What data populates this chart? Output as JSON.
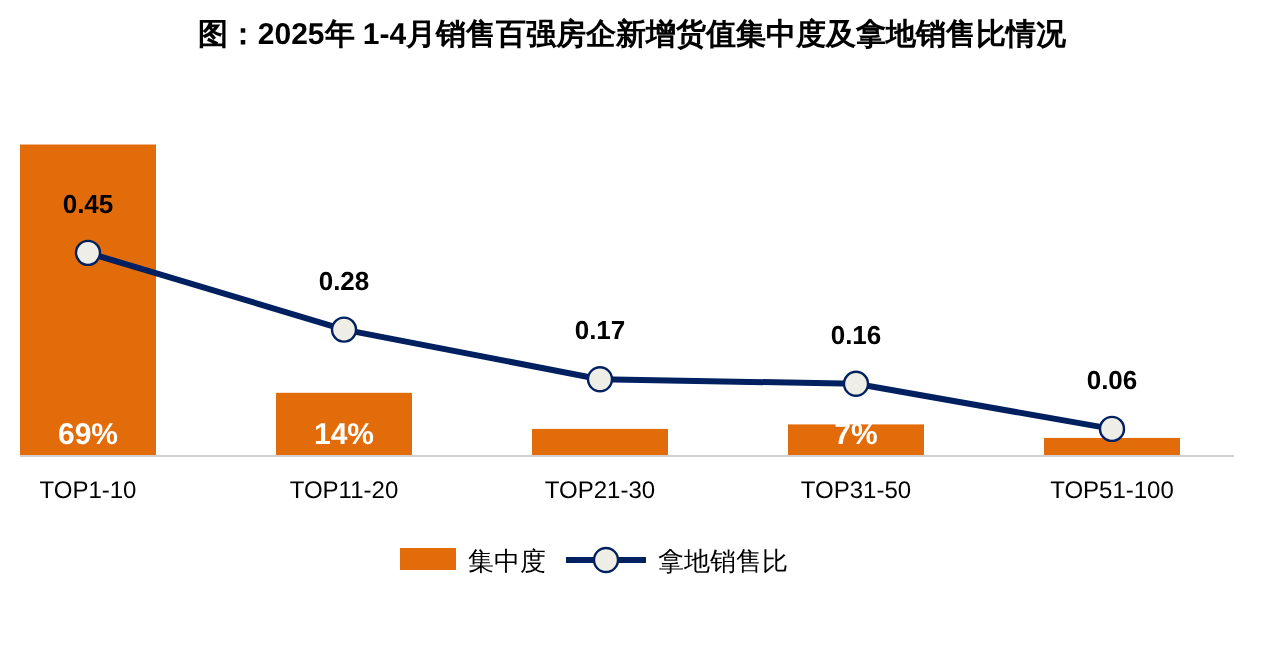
{
  "chart_data": {
    "type": "bar",
    "title": "图：2025年 1-4月销售百强房企新增货值集中度及拿地销售比情况",
    "categories": [
      "TOP1-10",
      "TOP11-20",
      "TOP21-30",
      "TOP31-50",
      "TOP51-100"
    ],
    "ylim": [
      0,
      70
    ],
    "y2lim": [
      0,
      0.7
    ],
    "tick_labels": "x",
    "legend": "bottom",
    "series": [
      {
        "name": "集中度",
        "color": "#e36c0a",
        "values": [
          69,
          14,
          6,
          7,
          4
        ],
        "value_labels": [
          "69%",
          "14%",
          null,
          "7%",
          null
        ]
      },
      {
        "name": "拿地销售比",
        "type": "line",
        "axis": "y2",
        "color": "#002060",
        "marker": "circle",
        "line_style": "solid",
        "data_labels": true,
        "values": [
          0.45,
          0.28,
          0.17,
          0.16,
          0.06
        ]
      }
    ]
  }
}
